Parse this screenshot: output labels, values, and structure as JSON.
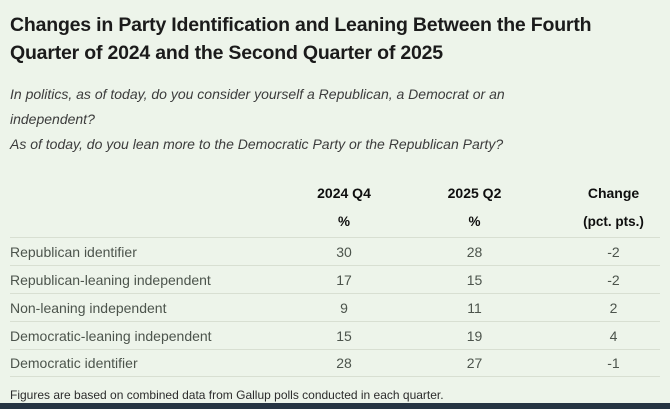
{
  "colors": {
    "background": "#edf4ea",
    "row_divider": "#d8dfd2",
    "bottom_accent_bar": "#263442",
    "title_text": "#1b1b1b",
    "body_text": "#4c544c"
  },
  "chart_data": {
    "type": "table",
    "title": "Changes in Party Identification and Leaning Between the Fourth Quarter of 2024 and the Second Quarter of 2025",
    "title_lines": [
      "Changes in Party Identification and Leaning Between the Fourth",
      "Quarter of 2024 and the Second Quarter of 2025"
    ],
    "questions": [
      {
        "lines": [
          "In politics, as of today, do you consider yourself a Republican, a Democrat or an",
          "independent?"
        ]
      },
      {
        "lines": [
          "As of today, do you lean more to the Democratic Party or the Republican Party?"
        ]
      }
    ],
    "columns": [
      "2024 Q4",
      "2025 Q2",
      "Change"
    ],
    "units": [
      "%",
      "%",
      "(pct. pts.)"
    ],
    "rows": [
      {
        "label": "Republican identifier",
        "q4_2024": 30,
        "q2_2025": 28,
        "change": -2
      },
      {
        "label": "Republican-leaning independent",
        "q4_2024": 17,
        "q2_2025": 15,
        "change": -2
      },
      {
        "label": "Non-leaning independent",
        "q4_2024": 9,
        "q2_2025": 11,
        "change": 2
      },
      {
        "label": "Democratic-leaning independent",
        "q4_2024": 15,
        "q2_2025": 19,
        "change": 4
      },
      {
        "label": "Democratic identifier",
        "q4_2024": 28,
        "q2_2025": 27,
        "change": -1
      }
    ],
    "footnote": "Figures are based on combined data from Gallup polls conducted in each quarter."
  }
}
